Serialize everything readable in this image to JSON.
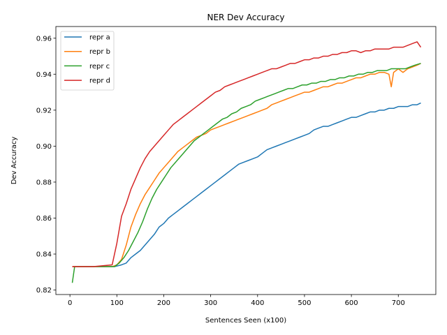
{
  "chart_data": {
    "type": "line",
    "title": "NER Dev Accuracy",
    "xlabel": "Sentences Seen (x100)",
    "ylabel": "Dev Accuracy",
    "xlim": [
      -30,
      780
    ],
    "ylim": [
      0.8175,
      0.9665
    ],
    "xticks": [
      0,
      100,
      200,
      300,
      400,
      500,
      600,
      700
    ],
    "yticks": [
      0.82,
      0.84,
      0.86,
      0.88,
      0.9,
      0.92,
      0.94,
      0.96
    ],
    "ytick_labels": [
      "0.82",
      "0.84",
      "0.86",
      "0.88",
      "0.90",
      "0.92",
      "0.94",
      "0.96"
    ],
    "grid": false,
    "legend_position": "upper-left",
    "series": [
      {
        "name": "repr a",
        "color": "#1f77b4",
        "points": [
          [
            5,
            0.833
          ],
          [
            50,
            0.833
          ],
          [
            95,
            0.833
          ],
          [
            110,
            0.834
          ],
          [
            120,
            0.835
          ],
          [
            130,
            0.838
          ],
          [
            140,
            0.84
          ],
          [
            150,
            0.842
          ],
          [
            160,
            0.845
          ],
          [
            170,
            0.848
          ],
          [
            180,
            0.851
          ],
          [
            190,
            0.855
          ],
          [
            200,
            0.857
          ],
          [
            210,
            0.86
          ],
          [
            220,
            0.862
          ],
          [
            230,
            0.864
          ],
          [
            240,
            0.866
          ],
          [
            250,
            0.868
          ],
          [
            260,
            0.87
          ],
          [
            270,
            0.872
          ],
          [
            280,
            0.874
          ],
          [
            290,
            0.876
          ],
          [
            300,
            0.878
          ],
          [
            310,
            0.88
          ],
          [
            320,
            0.882
          ],
          [
            330,
            0.884
          ],
          [
            340,
            0.886
          ],
          [
            350,
            0.888
          ],
          [
            360,
            0.89
          ],
          [
            370,
            0.891
          ],
          [
            380,
            0.892
          ],
          [
            390,
            0.893
          ],
          [
            400,
            0.894
          ],
          [
            410,
            0.896
          ],
          [
            420,
            0.898
          ],
          [
            430,
            0.899
          ],
          [
            440,
            0.9
          ],
          [
            450,
            0.901
          ],
          [
            460,
            0.902
          ],
          [
            470,
            0.903
          ],
          [
            480,
            0.904
          ],
          [
            490,
            0.905
          ],
          [
            500,
            0.906
          ],
          [
            510,
            0.907
          ],
          [
            520,
            0.909
          ],
          [
            530,
            0.91
          ],
          [
            540,
            0.911
          ],
          [
            550,
            0.911
          ],
          [
            560,
            0.912
          ],
          [
            570,
            0.913
          ],
          [
            580,
            0.914
          ],
          [
            590,
            0.915
          ],
          [
            600,
            0.916
          ],
          [
            610,
            0.916
          ],
          [
            620,
            0.917
          ],
          [
            630,
            0.918
          ],
          [
            640,
            0.919
          ],
          [
            650,
            0.919
          ],
          [
            660,
            0.92
          ],
          [
            670,
            0.92
          ],
          [
            680,
            0.921
          ],
          [
            690,
            0.921
          ],
          [
            700,
            0.922
          ],
          [
            710,
            0.922
          ],
          [
            720,
            0.922
          ],
          [
            730,
            0.923
          ],
          [
            740,
            0.923
          ],
          [
            748,
            0.924
          ]
        ]
      },
      {
        "name": "repr b",
        "color": "#ff7f0e",
        "points": [
          [
            5,
            0.833
          ],
          [
            50,
            0.833
          ],
          [
            90,
            0.833
          ],
          [
            100,
            0.834
          ],
          [
            110,
            0.837
          ],
          [
            120,
            0.845
          ],
          [
            130,
            0.855
          ],
          [
            140,
            0.862
          ],
          [
            150,
            0.868
          ],
          [
            160,
            0.873
          ],
          [
            170,
            0.877
          ],
          [
            180,
            0.881
          ],
          [
            190,
            0.885
          ],
          [
            200,
            0.888
          ],
          [
            210,
            0.891
          ],
          [
            220,
            0.894
          ],
          [
            230,
            0.897
          ],
          [
            240,
            0.899
          ],
          [
            250,
            0.901
          ],
          [
            260,
            0.903
          ],
          [
            270,
            0.905
          ],
          [
            280,
            0.906
          ],
          [
            290,
            0.907
          ],
          [
            300,
            0.909
          ],
          [
            310,
            0.91
          ],
          [
            320,
            0.911
          ],
          [
            330,
            0.912
          ],
          [
            340,
            0.913
          ],
          [
            350,
            0.914
          ],
          [
            360,
            0.915
          ],
          [
            370,
            0.916
          ],
          [
            380,
            0.917
          ],
          [
            390,
            0.918
          ],
          [
            400,
            0.919
          ],
          [
            410,
            0.92
          ],
          [
            420,
            0.921
          ],
          [
            430,
            0.923
          ],
          [
            440,
            0.924
          ],
          [
            450,
            0.925
          ],
          [
            460,
            0.926
          ],
          [
            470,
            0.927
          ],
          [
            480,
            0.928
          ],
          [
            490,
            0.929
          ],
          [
            500,
            0.93
          ],
          [
            510,
            0.93
          ],
          [
            520,
            0.931
          ],
          [
            530,
            0.932
          ],
          [
            540,
            0.933
          ],
          [
            550,
            0.933
          ],
          [
            560,
            0.934
          ],
          [
            570,
            0.935
          ],
          [
            580,
            0.935
          ],
          [
            590,
            0.936
          ],
          [
            600,
            0.937
          ],
          [
            610,
            0.938
          ],
          [
            620,
            0.938
          ],
          [
            630,
            0.939
          ],
          [
            640,
            0.94
          ],
          [
            650,
            0.94
          ],
          [
            660,
            0.941
          ],
          [
            670,
            0.941
          ],
          [
            680,
            0.94
          ],
          [
            685,
            0.933
          ],
          [
            690,
            0.941
          ],
          [
            700,
            0.943
          ],
          [
            710,
            0.941
          ],
          [
            720,
            0.943
          ],
          [
            730,
            0.944
          ],
          [
            740,
            0.945
          ],
          [
            748,
            0.946
          ]
        ]
      },
      {
        "name": "repr c",
        "color": "#2ca02c",
        "points": [
          [
            5,
            0.824
          ],
          [
            10,
            0.833
          ],
          [
            50,
            0.833
          ],
          [
            95,
            0.833
          ],
          [
            105,
            0.835
          ],
          [
            115,
            0.838
          ],
          [
            125,
            0.842
          ],
          [
            135,
            0.847
          ],
          [
            145,
            0.852
          ],
          [
            155,
            0.858
          ],
          [
            165,
            0.865
          ],
          [
            175,
            0.871
          ],
          [
            185,
            0.876
          ],
          [
            195,
            0.88
          ],
          [
            205,
            0.884
          ],
          [
            215,
            0.888
          ],
          [
            225,
            0.891
          ],
          [
            235,
            0.894
          ],
          [
            245,
            0.897
          ],
          [
            255,
            0.9
          ],
          [
            265,
            0.903
          ],
          [
            275,
            0.905
          ],
          [
            285,
            0.907
          ],
          [
            295,
            0.909
          ],
          [
            305,
            0.911
          ],
          [
            315,
            0.913
          ],
          [
            325,
            0.915
          ],
          [
            335,
            0.916
          ],
          [
            345,
            0.918
          ],
          [
            355,
            0.919
          ],
          [
            365,
            0.921
          ],
          [
            375,
            0.922
          ],
          [
            385,
            0.923
          ],
          [
            395,
            0.925
          ],
          [
            405,
            0.926
          ],
          [
            415,
            0.927
          ],
          [
            425,
            0.928
          ],
          [
            435,
            0.929
          ],
          [
            445,
            0.93
          ],
          [
            455,
            0.931
          ],
          [
            465,
            0.932
          ],
          [
            475,
            0.932
          ],
          [
            485,
            0.933
          ],
          [
            495,
            0.934
          ],
          [
            505,
            0.934
          ],
          [
            515,
            0.935
          ],
          [
            525,
            0.935
          ],
          [
            535,
            0.936
          ],
          [
            545,
            0.936
          ],
          [
            555,
            0.937
          ],
          [
            565,
            0.937
          ],
          [
            575,
            0.938
          ],
          [
            585,
            0.938
          ],
          [
            595,
            0.939
          ],
          [
            605,
            0.939
          ],
          [
            615,
            0.94
          ],
          [
            625,
            0.94
          ],
          [
            635,
            0.941
          ],
          [
            645,
            0.941
          ],
          [
            655,
            0.942
          ],
          [
            665,
            0.942
          ],
          [
            675,
            0.942
          ],
          [
            685,
            0.943
          ],
          [
            695,
            0.943
          ],
          [
            705,
            0.943
          ],
          [
            715,
            0.943
          ],
          [
            725,
            0.944
          ],
          [
            735,
            0.945
          ],
          [
            748,
            0.946
          ]
        ]
      },
      {
        "name": "repr d",
        "color": "#d62728",
        "points": [
          [
            5,
            0.833
          ],
          [
            50,
            0.833
          ],
          [
            90,
            0.834
          ],
          [
            100,
            0.846
          ],
          [
            110,
            0.861
          ],
          [
            120,
            0.868
          ],
          [
            130,
            0.876
          ],
          [
            140,
            0.882
          ],
          [
            150,
            0.888
          ],
          [
            160,
            0.893
          ],
          [
            170,
            0.897
          ],
          [
            180,
            0.9
          ],
          [
            190,
            0.903
          ],
          [
            200,
            0.906
          ],
          [
            210,
            0.909
          ],
          [
            220,
            0.912
          ],
          [
            230,
            0.914
          ],
          [
            240,
            0.916
          ],
          [
            250,
            0.918
          ],
          [
            260,
            0.92
          ],
          [
            270,
            0.922
          ],
          [
            280,
            0.924
          ],
          [
            290,
            0.926
          ],
          [
            300,
            0.928
          ],
          [
            310,
            0.93
          ],
          [
            320,
            0.931
          ],
          [
            330,
            0.933
          ],
          [
            340,
            0.934
          ],
          [
            350,
            0.935
          ],
          [
            360,
            0.936
          ],
          [
            370,
            0.937
          ],
          [
            380,
            0.938
          ],
          [
            390,
            0.939
          ],
          [
            400,
            0.94
          ],
          [
            410,
            0.941
          ],
          [
            420,
            0.942
          ],
          [
            430,
            0.943
          ],
          [
            440,
            0.943
          ],
          [
            450,
            0.944
          ],
          [
            460,
            0.945
          ],
          [
            470,
            0.946
          ],
          [
            480,
            0.946
          ],
          [
            490,
            0.947
          ],
          [
            500,
            0.948
          ],
          [
            510,
            0.948
          ],
          [
            520,
            0.949
          ],
          [
            530,
            0.949
          ],
          [
            540,
            0.95
          ],
          [
            550,
            0.95
          ],
          [
            560,
            0.951
          ],
          [
            570,
            0.951
          ],
          [
            580,
            0.952
          ],
          [
            590,
            0.952
          ],
          [
            600,
            0.953
          ],
          [
            610,
            0.953
          ],
          [
            620,
            0.952
          ],
          [
            630,
            0.953
          ],
          [
            640,
            0.953
          ],
          [
            650,
            0.954
          ],
          [
            660,
            0.954
          ],
          [
            670,
            0.954
          ],
          [
            680,
            0.954
          ],
          [
            690,
            0.955
          ],
          [
            700,
            0.955
          ],
          [
            710,
            0.955
          ],
          [
            720,
            0.956
          ],
          [
            730,
            0.957
          ],
          [
            740,
            0.958
          ],
          [
            748,
            0.955
          ]
        ]
      }
    ]
  }
}
